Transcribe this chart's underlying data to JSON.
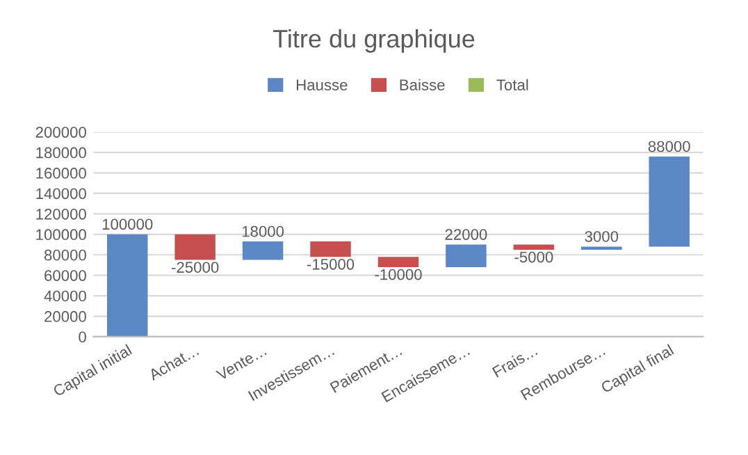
{
  "chart_data": {
    "type": "bar",
    "title": "Titre du graphique",
    "categories": [
      "Capital initial",
      "Achat…",
      "Vente…",
      "Investissem…",
      "Paiement…",
      "Encaisseme…",
      "Frais…",
      "Rembourse…",
      "Capital final"
    ],
    "series": [
      {
        "name": "Hausse",
        "color": "#5b87c5",
        "values": [
          100000,
          null,
          18000,
          null,
          null,
          22000,
          null,
          3000,
          88000
        ],
        "base": [
          0,
          null,
          75000,
          null,
          null,
          68000,
          null,
          85000,
          88000
        ],
        "value_labels": [
          "100000",
          null,
          "18000",
          null,
          null,
          "22000",
          null,
          "3000",
          "88000"
        ]
      },
      {
        "name": "Baisse",
        "color": "#c5504f",
        "values": [
          null,
          -25000,
          null,
          -15000,
          -10000,
          null,
          -5000,
          null,
          null
        ],
        "base": [
          null,
          100000,
          null,
          93000,
          78000,
          null,
          90000,
          null,
          null
        ],
        "value_labels": [
          null,
          "-25000",
          null,
          "-15000",
          "-10000",
          null,
          "-5000",
          null,
          null
        ]
      },
      {
        "name": "Total",
        "color": "#9bbb59",
        "values": [
          null,
          null,
          null,
          null,
          null,
          null,
          null,
          null,
          null
        ]
      }
    ],
    "ylim": [
      0,
      200000
    ],
    "yticks": [
      0,
      20000,
      40000,
      60000,
      80000,
      100000,
      120000,
      140000,
      160000,
      180000,
      200000
    ],
    "grid": "y",
    "legend": "top"
  }
}
